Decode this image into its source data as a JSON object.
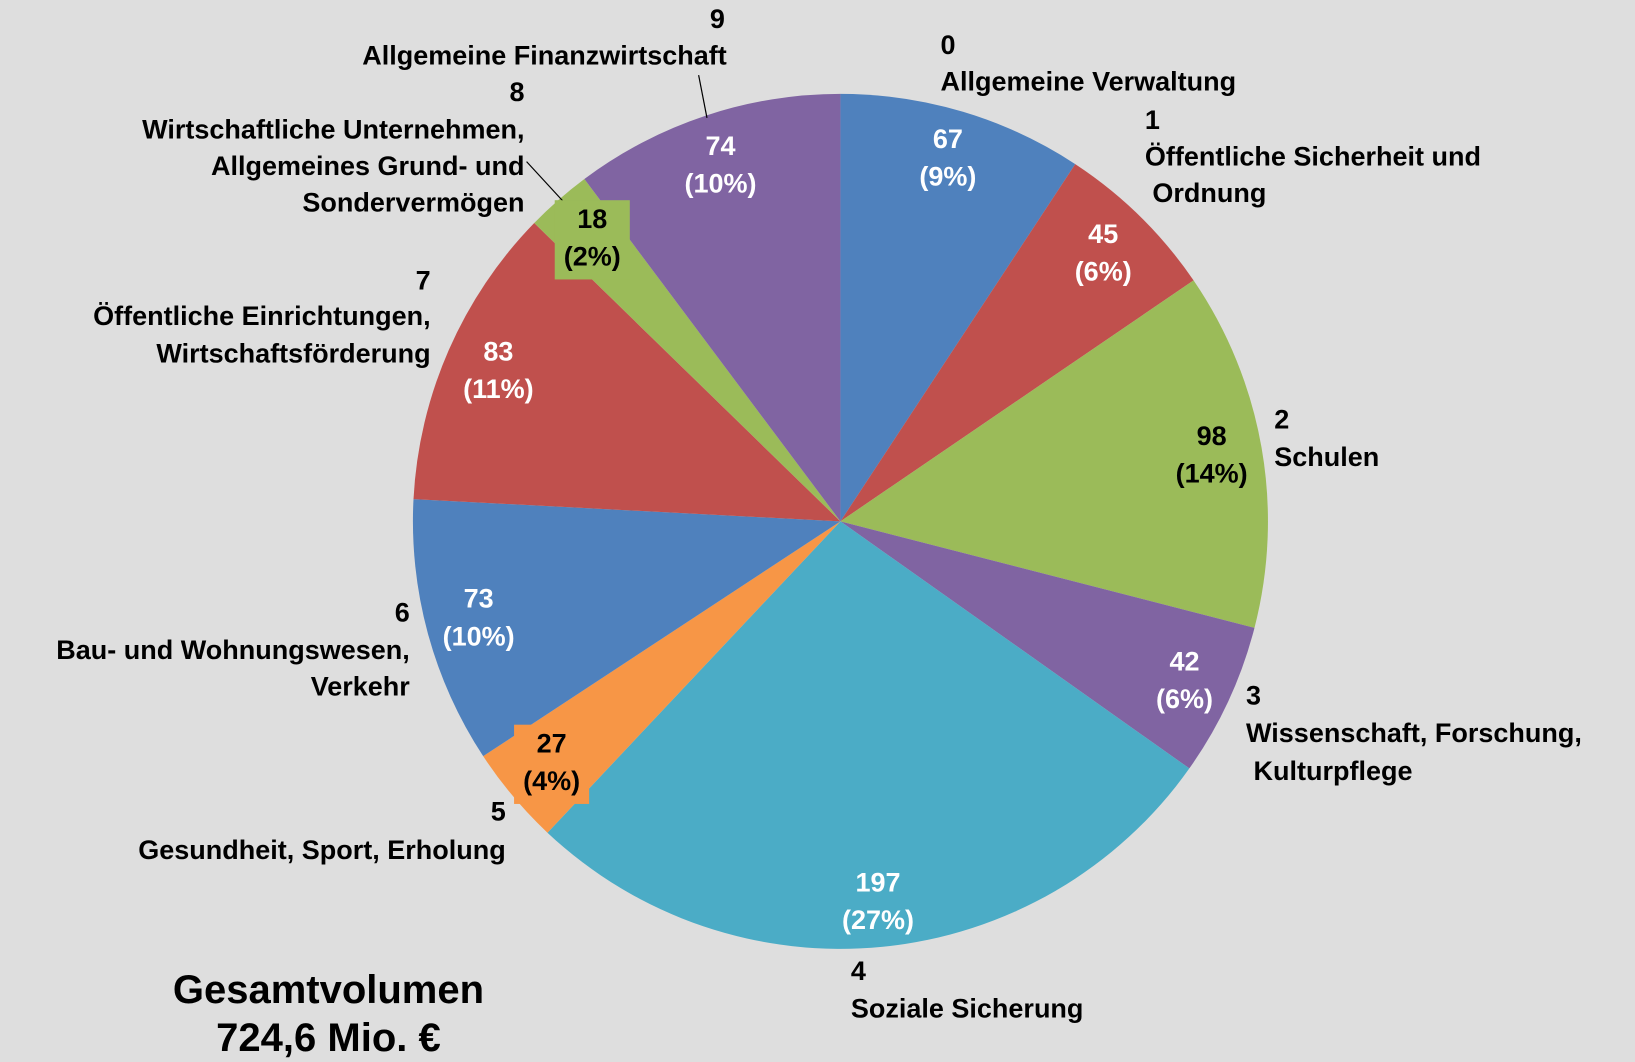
{
  "chart_data": {
    "type": "pie",
    "categories": [
      "0",
      "1",
      "2",
      "3",
      "4",
      "5",
      "6",
      "7",
      "8",
      "9"
    ],
    "labels": [
      [
        "Allgemeine Verwaltung"
      ],
      [
        "Öffentliche Sicherheit und",
        " Ordnung"
      ],
      [
        "Schulen"
      ],
      [
        "Wissenschaft, Forschung,",
        " Kulturpflege"
      ],
      [
        "Soziale Sicherung"
      ],
      [
        "Gesundheit, Sport, Erholung"
      ],
      [
        "Bau- und Wohnungswesen,",
        "Verkehr"
      ],
      [
        "Öffentliche Einrichtungen,",
        "Wirtschaftsförderung"
      ],
      [
        "Wirtschaftliche Unternehmen,",
        "Allgemeines Grund- und",
        "Sondervermögen"
      ],
      [
        "Allgemeine Finanzwirtschaft"
      ]
    ],
    "values": [
      67,
      45,
      98,
      42,
      197,
      27,
      73,
      83,
      18,
      74
    ],
    "percent_labels": [
      "(9%)",
      "(6%)",
      "(14%)",
      "(6%)",
      "(27%)",
      "(4%)",
      "(10%)",
      "(11%)",
      "(2%)",
      "(10%)"
    ],
    "colors": [
      "#4f81bd",
      "#c0504d",
      "#9bbb59",
      "#8064a2",
      "#4bacc6",
      "#f79646",
      "#4f81bd",
      "#c0504d",
      "#9bbb59",
      "#8064a2"
    ],
    "label_colors": [
      "#ffffff",
      "#ffffff",
      "#000000",
      "#ffffff",
      "#ffffff",
      "#000000",
      "#ffffff",
      "#ffffff",
      "#000000",
      "#ffffff"
    ],
    "annotation": [
      "Gesamtvolumen",
      "724,6 Mio. €"
    ]
  }
}
